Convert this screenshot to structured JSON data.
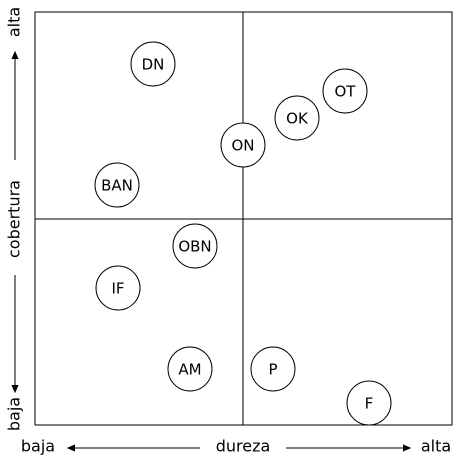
{
  "y_axis": {
    "label": "cobertura",
    "low": "baja",
    "high": "alta"
  },
  "x_axis": {
    "label": "dureza",
    "low": "baja",
    "high": "alta"
  },
  "nodes": [
    {
      "label": "DN"
    },
    {
      "label": "OT"
    },
    {
      "label": "OK"
    },
    {
      "label": "ON"
    },
    {
      "label": "BAN"
    },
    {
      "label": "OBN"
    },
    {
      "label": "IF"
    },
    {
      "label": "AM"
    },
    {
      "label": "P"
    },
    {
      "label": "F"
    }
  ]
}
